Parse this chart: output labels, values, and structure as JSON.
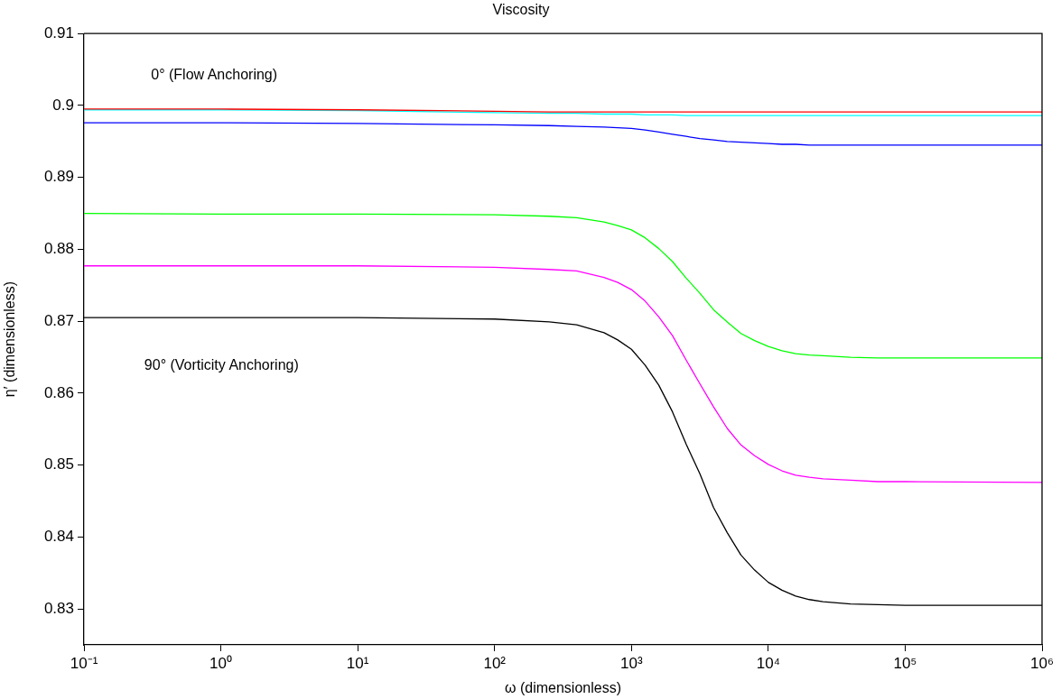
{
  "chart_data": {
    "type": "line",
    "title": "Viscosity",
    "xlabel": "ω (dimensionless)",
    "ylabel": "η′ (dimensionless)",
    "x": [
      0.1,
      1,
      10,
      100,
      251,
      398,
      631,
      794,
      1000,
      1259,
      1585,
      1995,
      2512,
      3162,
      3981,
      5012,
      6310,
      7943,
      10000,
      12589,
      15849,
      19953,
      25119,
      39811,
      63096,
      100000,
      1000000
    ],
    "series": [
      {
        "color": "#ff0000",
        "values": [
          0.8995,
          0.8995,
          0.8994,
          0.8992,
          0.8991,
          0.8991,
          0.8991,
          0.8991,
          0.8991,
          0.8991,
          0.8991,
          0.8991,
          0.8991,
          0.8991,
          0.8991,
          0.8991,
          0.8991,
          0.8991,
          0.8991,
          0.8991,
          0.8991,
          0.8991,
          0.8991,
          0.8991,
          0.8991,
          0.8991,
          0.8991
        ]
      },
      {
        "color": "#00ffff",
        "values": [
          0.8994,
          0.8994,
          0.8993,
          0.899,
          0.8989,
          0.8989,
          0.8988,
          0.8988,
          0.8988,
          0.8987,
          0.8987,
          0.8987,
          0.8986,
          0.8986,
          0.8986,
          0.8986,
          0.8986,
          0.8986,
          0.8986,
          0.8986,
          0.8986,
          0.8986,
          0.8986,
          0.8986,
          0.8986,
          0.8986,
          0.8986
        ]
      },
      {
        "color": "#0000ff",
        "values": [
          0.8976,
          0.8976,
          0.8975,
          0.8973,
          0.8972,
          0.8971,
          0.897,
          0.8969,
          0.8968,
          0.8966,
          0.8963,
          0.896,
          0.8957,
          0.8954,
          0.8952,
          0.895,
          0.8949,
          0.8948,
          0.8947,
          0.8946,
          0.8946,
          0.8945,
          0.8945,
          0.8945,
          0.8945,
          0.8945,
          0.8945
        ]
      },
      {
        "color": "#00ff00",
        "values": [
          0.885,
          0.8849,
          0.8849,
          0.8848,
          0.8846,
          0.8844,
          0.8838,
          0.8833,
          0.8827,
          0.8816,
          0.8801,
          0.8783,
          0.876,
          0.8739,
          0.8716,
          0.8699,
          0.8683,
          0.8673,
          0.8665,
          0.8659,
          0.8655,
          0.8653,
          0.8652,
          0.865,
          0.8649,
          0.8649,
          0.8649
        ]
      },
      {
        "color": "#ff00ff",
        "values": [
          0.8777,
          0.8777,
          0.8777,
          0.8775,
          0.8772,
          0.877,
          0.8761,
          0.8754,
          0.8744,
          0.8728,
          0.8706,
          0.868,
          0.8646,
          0.8613,
          0.8581,
          0.8551,
          0.8528,
          0.8513,
          0.8501,
          0.8492,
          0.8486,
          0.8483,
          0.8481,
          0.8479,
          0.8477,
          0.8477,
          0.8476
        ]
      },
      {
        "color": "#000000",
        "values": [
          0.8705,
          0.8705,
          0.8705,
          0.8703,
          0.8699,
          0.8695,
          0.8684,
          0.8674,
          0.8661,
          0.8639,
          0.8611,
          0.8574,
          0.8529,
          0.8488,
          0.8441,
          0.8406,
          0.8375,
          0.8354,
          0.8337,
          0.8326,
          0.8318,
          0.8313,
          0.831,
          0.8307,
          0.8306,
          0.8305,
          0.8305
        ]
      }
    ],
    "log": "x",
    "xlim": [
      0.1,
      1000000
    ],
    "ylim": [
      0.825,
      0.91
    ],
    "xticks": [
      {
        "value": 0.1,
        "label": "10⁻¹"
      },
      {
        "value": 1,
        "label": "10⁰"
      },
      {
        "value": 10,
        "label": "10¹"
      },
      {
        "value": 100,
        "label": "10²"
      },
      {
        "value": 1000,
        "label": "10³"
      },
      {
        "value": 10000,
        "label": "10⁴"
      },
      {
        "value": 100000,
        "label": "10⁵"
      },
      {
        "value": 1000000,
        "label": "10⁶"
      }
    ],
    "yticks": [
      0.83,
      0.84,
      0.85,
      0.86,
      0.87,
      0.88,
      0.89,
      {
        "value": 0.9,
        "label": "0.9"
      },
      0.91
    ],
    "grid": false,
    "legend": false,
    "marker": "none",
    "line_style": "solid",
    "annotations": [
      "0° (Flow Anchoring)",
      "90° (Vorticity Anchoring)"
    ]
  }
}
